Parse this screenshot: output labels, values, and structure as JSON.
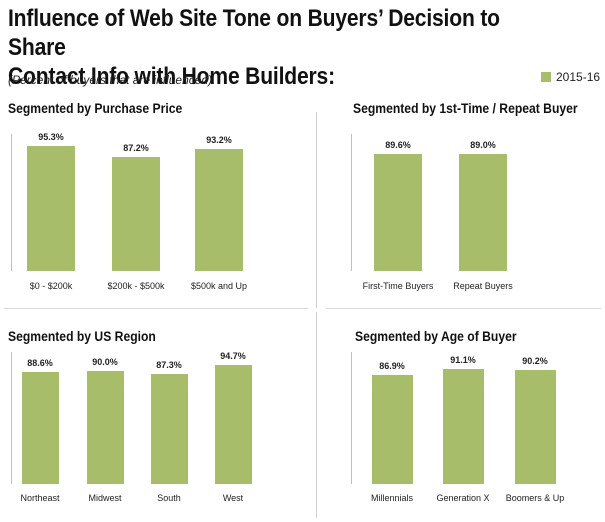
{
  "header": {
    "title_line1": "Influence of Web Site Tone on Buyers’ Decision to Share",
    "title_line2": "Contact Info with Home Builders:",
    "subtitle": "(Percent of buyers that are influenced)",
    "legend_label": "2015-16",
    "legend_color": "#a7bd69"
  },
  "chart_data": [
    {
      "type": "bar",
      "title": "Segmented by Purchase Price",
      "categories": [
        "$0 - $200k",
        "$200k - $500k",
        "$500k and Up"
      ],
      "series": [
        {
          "name": "2015-16",
          "values": [
            95.3,
            87.2,
            93.2
          ]
        }
      ],
      "value_labels": [
        "95.3%",
        "87.2%",
        "93.2%"
      ],
      "ylim": [
        0,
        100
      ],
      "grid": false
    },
    {
      "type": "bar",
      "title": "Segmented by 1st-Time / Repeat Buyer",
      "categories": [
        "First-Time Buyers",
        "Repeat Buyers"
      ],
      "series": [
        {
          "name": "2015-16",
          "values": [
            89.6,
            89.0
          ]
        }
      ],
      "value_labels": [
        "89.6%",
        "89.0%"
      ],
      "ylim": [
        0,
        100
      ],
      "grid": false
    },
    {
      "type": "bar",
      "title": "Segmented by US Region",
      "categories": [
        "Northeast",
        "Midwest",
        "South",
        "West"
      ],
      "series": [
        {
          "name": "2015-16",
          "values": [
            88.6,
            90.0,
            87.3,
            94.7
          ]
        }
      ],
      "value_labels": [
        "88.6%",
        "90.0%",
        "87.3%",
        "94.7%"
      ],
      "ylim": [
        0,
        100
      ],
      "grid": false
    },
    {
      "type": "bar",
      "title": "Segmented by Age of Buyer",
      "categories": [
        "Millennials",
        "Generation X",
        "Boomers & Up"
      ],
      "series": [
        {
          "name": "2015-16",
          "values": [
            86.9,
            91.1,
            90.2
          ]
        }
      ],
      "value_labels": [
        "86.9%",
        "91.1%",
        "90.2%"
      ],
      "ylim": [
        0,
        100
      ],
      "grid": false
    }
  ]
}
